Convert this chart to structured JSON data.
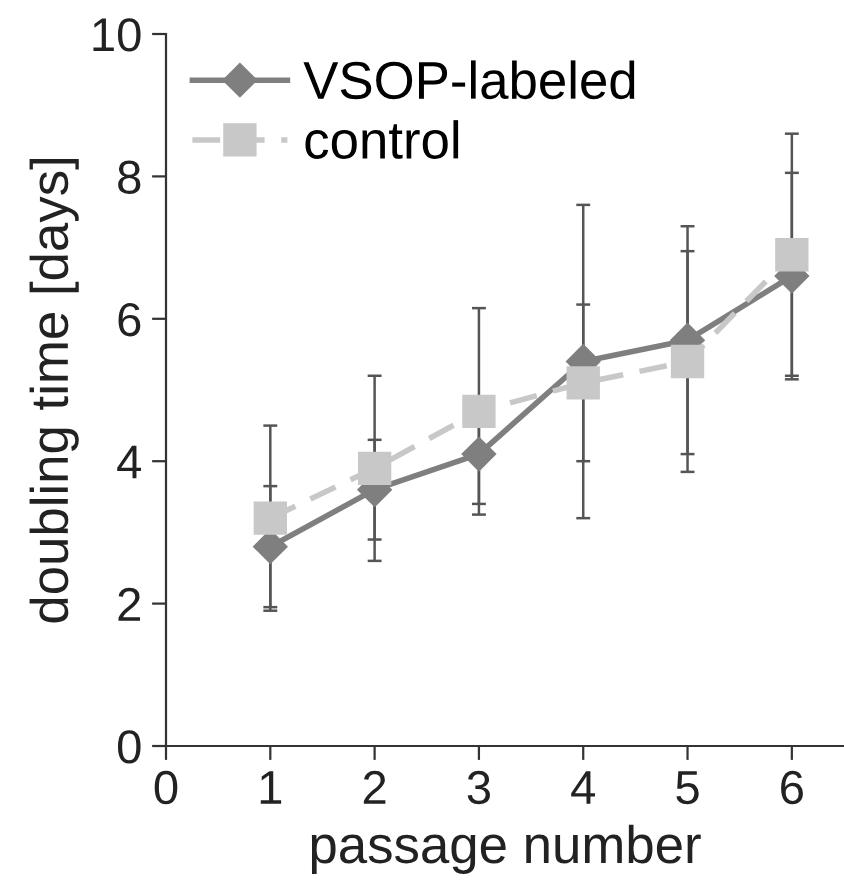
{
  "chart_data": {
    "type": "line",
    "xlabel": "passage number",
    "ylabel": "doubling time [days]",
    "x": [
      1,
      2,
      3,
      4,
      5,
      6
    ],
    "series": [
      {
        "name": "VSOP-labeled",
        "color": "#7f7f7f",
        "marker": "diamond",
        "line_style": "solid",
        "values": [
          2.8,
          3.6,
          4.1,
          5.4,
          5.7,
          6.6
        ],
        "errors": [
          0.85,
          0.7,
          0.7,
          2.2,
          1.6,
          1.45
        ]
      },
      {
        "name": "control",
        "color": "#c8c8c8",
        "marker": "square",
        "line_style": "dashed",
        "values": [
          3.2,
          3.9,
          4.7,
          5.1,
          5.4,
          6.9
        ],
        "errors": [
          1.3,
          1.3,
          1.45,
          1.1,
          1.55,
          1.7
        ]
      }
    ],
    "xlim": [
      0,
      6.5
    ],
    "xticks": [
      0,
      1,
      2,
      3,
      4,
      5,
      6
    ],
    "ylim": [
      0,
      10
    ],
    "yticks": [
      0,
      2,
      4,
      6,
      8,
      10
    ],
    "grid": false,
    "legend": "top left"
  }
}
